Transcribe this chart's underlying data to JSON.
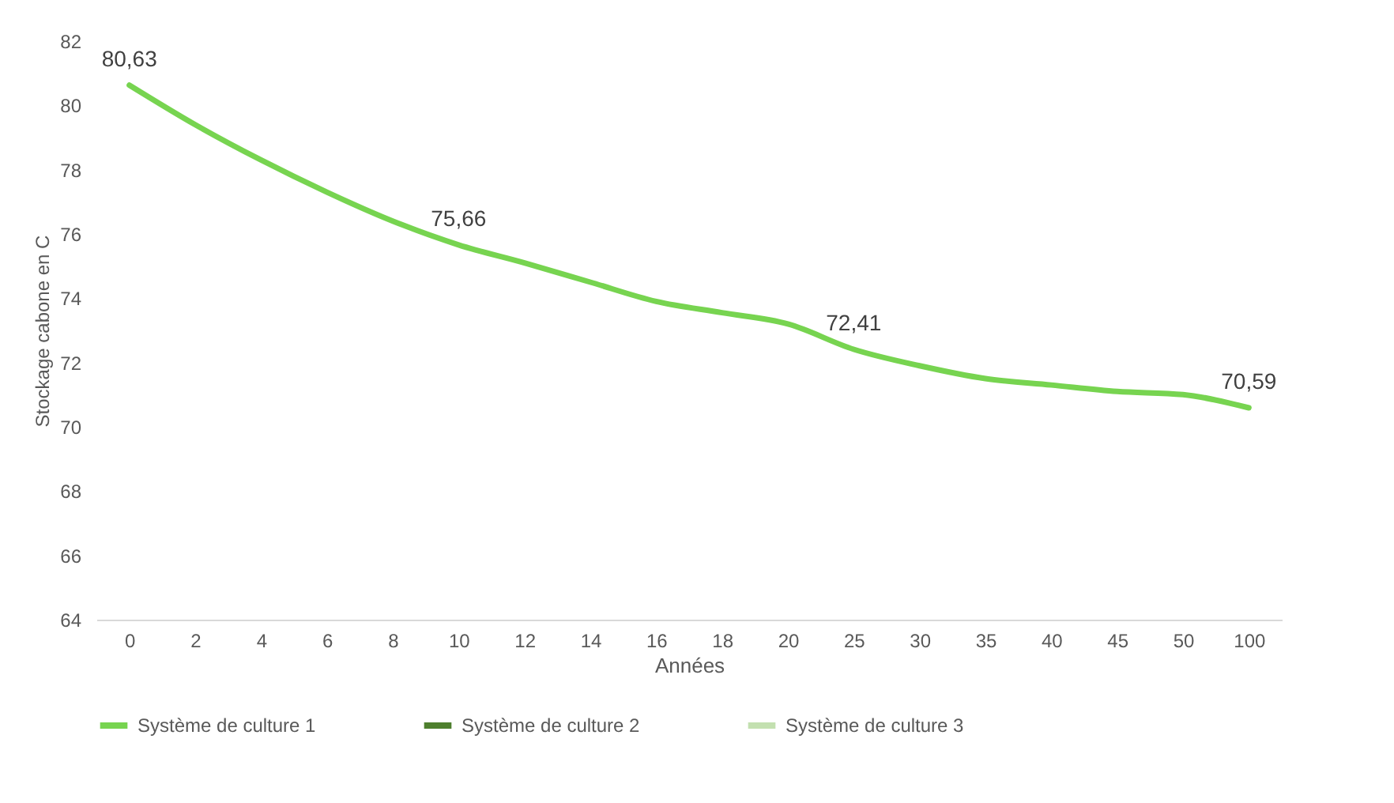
{
  "chart_data": {
    "type": "line",
    "xlabel": "Années",
    "ylabel": "Stockage cabone en C",
    "categories": [
      "0",
      "2",
      "4",
      "6",
      "8",
      "10",
      "12",
      "14",
      "16",
      "18",
      "20",
      "25",
      "30",
      "35",
      "40",
      "45",
      "50",
      "100"
    ],
    "series": [
      {
        "name": "Système de culture 1",
        "color": "#77d450",
        "values": [
          80.63,
          79.4,
          78.3,
          77.3,
          76.4,
          75.66,
          75.1,
          74.5,
          73.9,
          73.55,
          73.2,
          72.41,
          71.9,
          71.5,
          71.3,
          71.1,
          71.0,
          70.59
        ],
        "value_labels": [
          "80,63",
          null,
          null,
          null,
          null,
          "75,66",
          null,
          null,
          null,
          null,
          null,
          "72,41",
          null,
          null,
          null,
          null,
          null,
          "70,59"
        ]
      },
      {
        "name": "Système de culture 2",
        "color": "#4e7f2e",
        "values": [
          null,
          null,
          null,
          null,
          null,
          null,
          null,
          null,
          null,
          null,
          null,
          null,
          null,
          null,
          null,
          null,
          null,
          null
        ]
      },
      {
        "name": "Système de culture 3",
        "color": "#c3e0b0",
        "values": [
          null,
          null,
          null,
          null,
          null,
          null,
          null,
          null,
          null,
          null,
          null,
          null,
          null,
          null,
          null,
          null,
          null,
          null
        ]
      }
    ],
    "ylim": [
      64,
      82
    ],
    "yticks": [
      64,
      66,
      68,
      70,
      72,
      74,
      76,
      78,
      80,
      82
    ],
    "grid": false,
    "legend": "bottom",
    "marker": "none",
    "line_style": "solid"
  }
}
